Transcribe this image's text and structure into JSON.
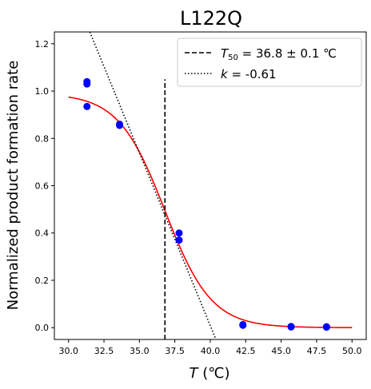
{
  "chart_data": {
    "type": "scatter",
    "title": "L122Q",
    "xlabel": {
      "italic": "T",
      "rest": " (℃)"
    },
    "ylabel": "Normalized product formation rate",
    "xlim": [
      29.0,
      51.0
    ],
    "ylim": [
      -0.05,
      1.25
    ],
    "xticks": [
      "30.0",
      "32.5",
      "35.0",
      "37.5",
      "40.0",
      "42.5",
      "45.0",
      "47.5",
      "50.0"
    ],
    "xtick_values": [
      30.0,
      32.5,
      35.0,
      37.5,
      40.0,
      42.5,
      45.0,
      47.5,
      50.0
    ],
    "yticks": [
      "0.0",
      "0.2",
      "0.4",
      "0.6",
      "0.8",
      "1.0",
      "1.2"
    ],
    "ytick_values": [
      0.0,
      0.2,
      0.4,
      0.6,
      0.8,
      1.0,
      1.2
    ],
    "grid": false,
    "legend_position": "top-right",
    "points": {
      "color": "#0000ff",
      "x": [
        31.3,
        31.3,
        31.3,
        33.6,
        33.6,
        37.8,
        37.8,
        42.3,
        42.3,
        45.7,
        45.7,
        48.2,
        48.2
      ],
      "y": [
        1.04,
        1.03,
        0.935,
        0.86,
        0.855,
        0.4,
        0.37,
        0.013,
        0.01,
        0.005,
        0.003,
        0.004,
        0.002
      ]
    },
    "fit": {
      "type": "sigmoid",
      "color": "#ff0000",
      "t50": 36.8,
      "slope": 0.61,
      "ymax": 0.99,
      "x_range": [
        30.0,
        50.0
      ]
    },
    "t50_line": {
      "style": "dashed",
      "x": 36.8,
      "y_range": [
        -0.05,
        1.05
      ],
      "legend": {
        "prefix": "T",
        "sub": "50",
        "rest": " = 36.8 ± 0.1 ℃"
      }
    },
    "slope_line": {
      "style": "dotted",
      "x_range": [
        31.5,
        40.4
      ],
      "y_range": [
        1.25,
        -0.05
      ],
      "legend": {
        "prefix": "k",
        "rest": " = -0.61"
      }
    }
  }
}
